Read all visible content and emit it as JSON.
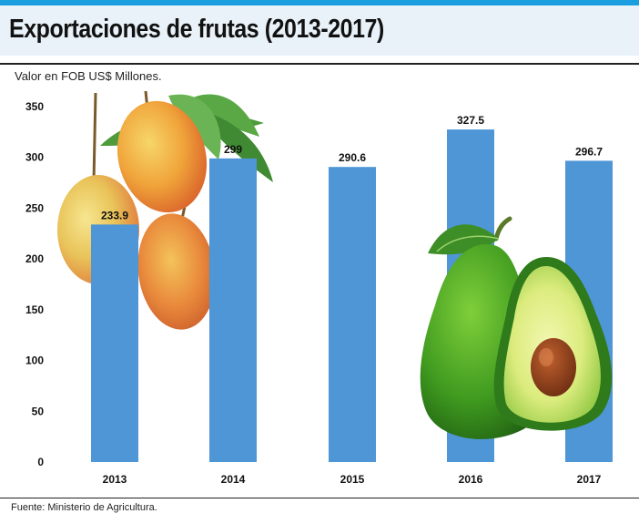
{
  "header": {
    "title": "Exportaciones de frutas (2013-2017)"
  },
  "footer": {
    "source": "Fuente: Ministerio de Agricultura."
  },
  "colors": {
    "bar": "#4f96d6",
    "accent": "#1a9ee0",
    "title_band": "#e9f2f9"
  },
  "decorations": [
    "mango-illustration",
    "avocado-illustration"
  ],
  "chart_data": {
    "type": "bar",
    "title": "Exportaciones de frutas (2013-2017)",
    "ylabel": "Valor en FOB US$ Millones.",
    "xlabel": "",
    "categories": [
      "2013",
      "2014",
      "2015",
      "2016",
      "2017"
    ],
    "values": [
      233.9,
      299,
      290.6,
      327.5,
      296.7
    ],
    "value_labels": [
      "233.9",
      "299",
      "290.6",
      "327.5",
      "296.7"
    ],
    "yticks": [
      0,
      50,
      100,
      150,
      200,
      250,
      300,
      350
    ],
    "ylim": [
      0,
      350
    ],
    "grid": false,
    "legend": "none"
  }
}
